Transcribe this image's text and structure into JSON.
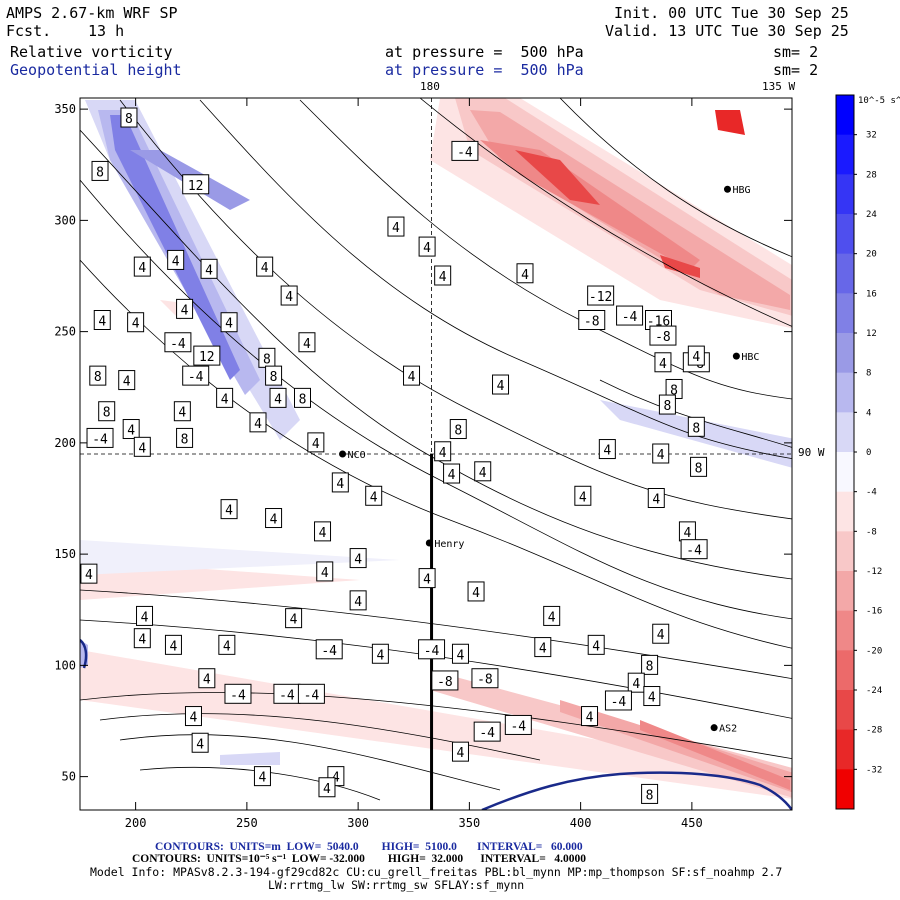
{
  "header": {
    "model": "AMPS 2.67-km WRF SP",
    "fcst_label": "Fcst.",
    "fcst_value": "13 h",
    "init": "Init. 00 UTC Tue 30 Sep 25",
    "valid": "Valid. 13 UTC Tue 30 Sep 25",
    "field1_name": "Relative vorticity",
    "field1_level": "at pressure =  500 hPa",
    "field1_sm": "sm= 2",
    "field2_name": "Geopotential height",
    "field2_level": "at pressure =  500 hPa",
    "field2_sm": "sm= 2"
  },
  "map_labels": {
    "lon_180": "180",
    "lon_135w": "135 W",
    "lon_90w": "90 W"
  },
  "stations": [
    {
      "name": "NCO",
      "x": 293,
      "y": 195
    },
    {
      "name": "Henry",
      "x": 332,
      "y": 155
    },
    {
      "name": "HBG",
      "x": 466,
      "y": 314
    },
    {
      "name": "HBC",
      "x": 470,
      "y": 239
    },
    {
      "name": "AS2",
      "x": 460,
      "y": 72
    }
  ],
  "chart_data": {
    "type": "heatmap",
    "title": "Relative vorticity / Geopotential height at 500 hPa",
    "xlim": [
      175,
      495
    ],
    "ylim": [
      35,
      355
    ],
    "x_ticks": [
      200,
      250,
      300,
      350,
      400,
      450
    ],
    "y_ticks": [
      50,
      100,
      150,
      200,
      250,
      300,
      350
    ],
    "grid_lines": {
      "x": 333,
      "y": 195
    },
    "cross_section": {
      "x": 333,
      "y0": 35,
      "y1": 195
    },
    "contour_labels": [
      {
        "v": "8",
        "x": 197,
        "y": 346
      },
      {
        "v": "8",
        "x": 184,
        "y": 322
      },
      {
        "v": "12",
        "x": 227,
        "y": 316
      },
      {
        "v": "4",
        "x": 317,
        "y": 297
      },
      {
        "v": "4",
        "x": 203,
        "y": 279
      },
      {
        "v": "4",
        "x": 218,
        "y": 282
      },
      {
        "v": "4",
        "x": 233,
        "y": 278
      },
      {
        "v": "4",
        "x": 258,
        "y": 279
      },
      {
        "v": "4",
        "x": 269,
        "y": 266
      },
      {
        "v": "4",
        "x": 185,
        "y": 255
      },
      {
        "v": "4",
        "x": 200,
        "y": 254
      },
      {
        "v": "4",
        "x": 222,
        "y": 260
      },
      {
        "v": "4",
        "x": 242,
        "y": 254
      },
      {
        "v": "4",
        "x": 277,
        "y": 245
      },
      {
        "v": "-4",
        "x": 219,
        "y": 245
      },
      {
        "v": "12",
        "x": 232,
        "y": 239
      },
      {
        "v": "8",
        "x": 259,
        "y": 238
      },
      {
        "v": "-4",
        "x": 227,
        "y": 230
      },
      {
        "v": "8",
        "x": 262,
        "y": 230
      },
      {
        "v": "8",
        "x": 183,
        "y": 230
      },
      {
        "v": "4",
        "x": 196,
        "y": 228
      },
      {
        "v": "4",
        "x": 264,
        "y": 220
      },
      {
        "v": "8",
        "x": 275,
        "y": 220
      },
      {
        "v": "4",
        "x": 240,
        "y": 220
      },
      {
        "v": "4",
        "x": 221,
        "y": 214
      },
      {
        "v": "8",
        "x": 187,
        "y": 214
      },
      {
        "v": "4",
        "x": 198,
        "y": 206
      },
      {
        "v": "4",
        "x": 255,
        "y": 209
      },
      {
        "v": "-4",
        "x": 184,
        "y": 202
      },
      {
        "v": "8",
        "x": 222,
        "y": 202
      },
      {
        "v": "4",
        "x": 203,
        "y": 198
      },
      {
        "v": "4",
        "x": 281,
        "y": 200
      },
      {
        "v": "4",
        "x": 324,
        "y": 230
      },
      {
        "v": "8",
        "x": 345,
        "y": 206
      },
      {
        "v": "4",
        "x": 338,
        "y": 196
      },
      {
        "v": "4",
        "x": 364,
        "y": 226
      },
      {
        "v": "4",
        "x": 331,
        "y": 288
      },
      {
        "v": "4",
        "x": 375,
        "y": 276
      },
      {
        "v": "-4",
        "x": 348,
        "y": 331
      },
      {
        "v": "4",
        "x": 338,
        "y": 275
      },
      {
        "v": "-12",
        "x": 409,
        "y": 266
      },
      {
        "v": "-8",
        "x": 405,
        "y": 255
      },
      {
        "v": "-4",
        "x": 422,
        "y": 257
      },
      {
        "v": "-16",
        "x": 435,
        "y": 255
      },
      {
        "v": "-8",
        "x": 437,
        "y": 248
      },
      {
        "v": "4",
        "x": 437,
        "y": 236
      },
      {
        "v": "-8",
        "x": 452,
        "y": 236
      },
      {
        "v": "4",
        "x": 452,
        "y": 239
      },
      {
        "v": "8",
        "x": 442,
        "y": 224
      },
      {
        "v": "8",
        "x": 439,
        "y": 217
      },
      {
        "v": "8",
        "x": 452,
        "y": 207
      },
      {
        "v": "4",
        "x": 412,
        "y": 197
      },
      {
        "v": "4",
        "x": 436,
        "y": 195
      },
      {
        "v": "8",
        "x": 453,
        "y": 189
      },
      {
        "v": "4",
        "x": 342,
        "y": 186
      },
      {
        "v": "4",
        "x": 356,
        "y": 187
      },
      {
        "v": "4",
        "x": 292,
        "y": 182
      },
      {
        "v": "4",
        "x": 307,
        "y": 176
      },
      {
        "v": "4",
        "x": 401,
        "y": 176
      },
      {
        "v": "4",
        "x": 434,
        "y": 175
      },
      {
        "v": "4",
        "x": 242,
        "y": 170
      },
      {
        "v": "4",
        "x": 262,
        "y": 166
      },
      {
        "v": "4",
        "x": 284,
        "y": 160
      },
      {
        "v": "4",
        "x": 448,
        "y": 160
      },
      {
        "v": "4",
        "x": 179,
        "y": 141
      },
      {
        "v": "4",
        "x": 300,
        "y": 148
      },
      {
        "v": "4",
        "x": 285,
        "y": 142
      },
      {
        "v": "4",
        "x": 331,
        "y": 139
      },
      {
        "v": "-4",
        "x": 451,
        "y": 152
      },
      {
        "v": "4",
        "x": 353,
        "y": 133
      },
      {
        "v": "4",
        "x": 204,
        "y": 122
      },
      {
        "v": "4",
        "x": 271,
        "y": 121
      },
      {
        "v": "4",
        "x": 300,
        "y": 129
      },
      {
        "v": "4",
        "x": 241,
        "y": 109
      },
      {
        "v": "4",
        "x": 203,
        "y": 112
      },
      {
        "v": "4",
        "x": 217,
        "y": 109
      },
      {
        "v": "4",
        "x": 310,
        "y": 105
      },
      {
        "v": "4",
        "x": 346,
        "y": 105
      },
      {
        "v": "-4",
        "x": 287,
        "y": 107
      },
      {
        "v": "-4",
        "x": 333,
        "y": 107
      },
      {
        "v": "4",
        "x": 387,
        "y": 122
      },
      {
        "v": "4",
        "x": 383,
        "y": 108
      },
      {
        "v": "4",
        "x": 407,
        "y": 109
      },
      {
        "v": "4",
        "x": 436,
        "y": 114
      },
      {
        "v": "-8",
        "x": 339,
        "y": 93
      },
      {
        "v": "-8",
        "x": 357,
        "y": 94
      },
      {
        "v": "8",
        "x": 431,
        "y": 100
      },
      {
        "v": "4",
        "x": 425,
        "y": 92
      },
      {
        "v": "4",
        "x": 432,
        "y": 86
      },
      {
        "v": "-4",
        "x": 246,
        "y": 87
      },
      {
        "v": "-4",
        "x": 268,
        "y": 87
      },
      {
        "v": "-4",
        "x": 279,
        "y": 87
      },
      {
        "v": "4",
        "x": 232,
        "y": 94
      },
      {
        "v": "4",
        "x": 226,
        "y": 77
      },
      {
        "v": "-4",
        "x": 417,
        "y": 84
      },
      {
        "v": "4",
        "x": 404,
        "y": 77
      },
      {
        "v": "-4",
        "x": 372,
        "y": 73
      },
      {
        "v": "-4",
        "x": 358,
        "y": 70
      },
      {
        "v": "4",
        "x": 229,
        "y": 65
      },
      {
        "v": "4",
        "x": 346,
        "y": 61
      },
      {
        "v": "4",
        "x": 257,
        "y": 50
      },
      {
        "v": "4",
        "x": 290,
        "y": 50
      },
      {
        "v": "4",
        "x": 286,
        "y": 45
      },
      {
        "v": "8",
        "x": 431,
        "y": 42
      }
    ],
    "colorbar": {
      "unit": "10^-5 s^-1",
      "ticks": [
        "32",
        "28",
        "24",
        "20",
        "16",
        "12",
        "8",
        "4",
        "0",
        "-4",
        "-8",
        "-12",
        "-16",
        "-20",
        "-24",
        "-28",
        "-32"
      ],
      "colors": [
        "#0000ff",
        "#1a1aff",
        "#3535f5",
        "#4f4fee",
        "#6767e8",
        "#8080e6",
        "#9a9ae6",
        "#b8b8ef",
        "#d8d8f6",
        "#f8f8ff",
        "#fde4e4",
        "#f8c8c8",
        "#f3a8a8",
        "#ef8888",
        "#ec6a6a",
        "#e84848",
        "#e82828",
        "#f00000"
      ]
    },
    "geopotential": {
      "units": "m",
      "low": "5040.0",
      "high": "5100.0",
      "interval": "60.000"
    },
    "vorticity": {
      "units": "10^-5 s^-1",
      "low": "-32.000",
      "high": "32.000",
      "interval": "4.0000"
    }
  },
  "footer": {
    "line1": "CONTOURS:  UNITS=m  LOW=  5040.0        HIGH=  5100.0       INTERVAL=   60.000",
    "line2": "CONTOURS:  UNITS=10⁻⁵ s⁻¹  LOW= -32.000        HIGH=  32.000      INTERVAL=   4.0000",
    "line3": "Model Info: MPASv8.2.3-194-gf29cd82c CU:cu_grell_freitas PBL:bl_mynn MP:mp_thompson SF:sf_noahmp 2.7",
    "line4": "LW:rrtmg_lw SW:rrtmg_sw SFLAY:sf_mynn"
  }
}
